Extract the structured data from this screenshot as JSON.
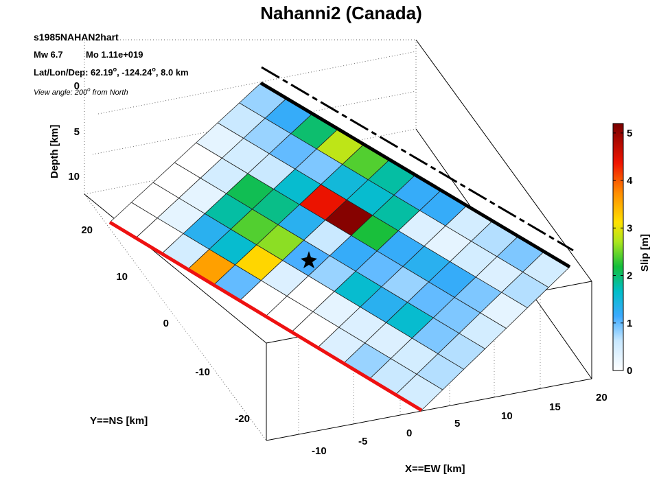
{
  "chart_data": {
    "type": "heatmap",
    "title": "Nahanni2 (Canada)",
    "event_id": "s1985NAHAN2hart",
    "magnitude": "Mw 6.7",
    "moment": "Mo 1.11e+019",
    "location_prefix": "Lat/Lon/Dep: 62.19",
    "location_mid": ", -124.24",
    "location_suffix": ", 8.0 km",
    "degree_mark": "o",
    "view_prefix": "View angle: 200",
    "view_suffix": " from North",
    "xlabel": "X==EW [km]",
    "ylabel": "Y==NS [km]",
    "zlabel": "Depth [km]",
    "x_ticks": [
      "-10",
      "-5",
      "0",
      "5",
      "10",
      "15",
      "20"
    ],
    "y_ticks": [
      "20",
      "10",
      "0",
      "-10",
      "-20"
    ],
    "z_ticks": [
      "0",
      "5",
      "10"
    ],
    "colorbar": {
      "label": "Slip [m]",
      "min": 0,
      "max": 5.2,
      "ticks": [
        "0",
        "1",
        "2",
        "3",
        "4",
        "5"
      ],
      "colormap": "jet-white"
    },
    "fault_plane": {
      "rows_down_dip": 7,
      "cols_along_strike": 12,
      "slip_m": [
        [
          0.8,
          1.2,
          2.0,
          2.8,
          2.4,
          1.8,
          1.2,
          1.2,
          0.5,
          0.7,
          0.9,
          0.5
        ],
        [
          0.6,
          0.8,
          1.0,
          0.9,
          1.5,
          1.6,
          1.8,
          0.4,
          0.3,
          0.5,
          0.4,
          0.7
        ],
        [
          0.3,
          0.5,
          0.6,
          1.6,
          4.4,
          5.1,
          2.2,
          1.2,
          1.3,
          1.2,
          0.9,
          0.3
        ],
        [
          0.0,
          0.5,
          2.1,
          1.9,
          1.3,
          0.6,
          1.2,
          1.0,
          0.8,
          1.0,
          0.9,
          0.5
        ],
        [
          0.0,
          0.3,
          1.8,
          2.4,
          2.6,
          1.1,
          0.8,
          1.6,
          1.3,
          1.6,
          0.9,
          0.7
        ],
        [
          0.0,
          0.3,
          1.3,
          1.6,
          3.2,
          0.4,
          0.0,
          0.3,
          0.4,
          0.4,
          0.5,
          0.7
        ],
        [
          0.0,
          0.0,
          0.5,
          3.6,
          1.0,
          0.0,
          0.0,
          0.0,
          0.4,
          0.8,
          0.6,
          0.5
        ]
      ]
    },
    "hypocenter_marker": "star"
  }
}
